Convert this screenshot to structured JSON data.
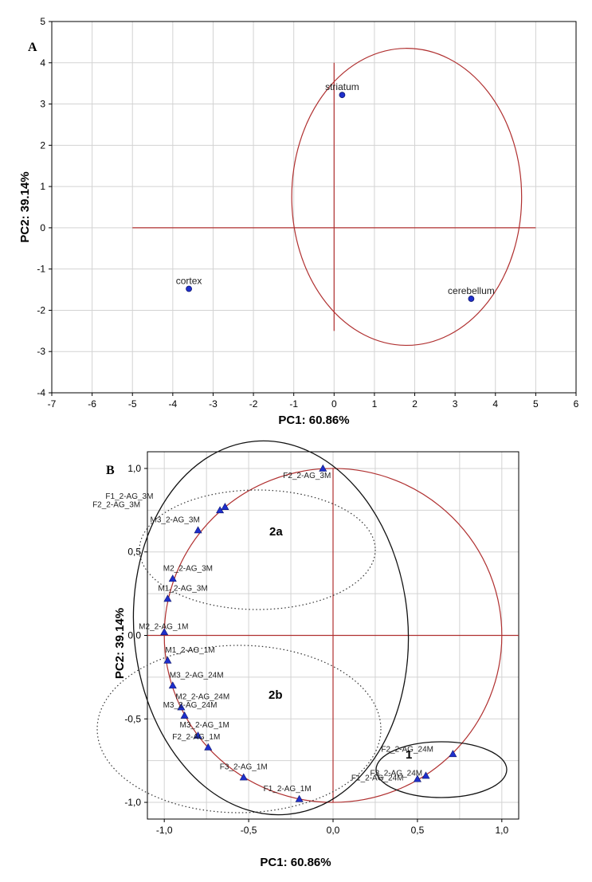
{
  "chart_data": [
    {
      "type": "scatter",
      "panel": "A",
      "xlabel": "PC1: 60.86%",
      "ylabel": "PC2: 39.14%",
      "xlim": [
        -7,
        6
      ],
      "ylim": [
        -4,
        5
      ],
      "xticks": [
        "-7",
        "-6",
        "-5",
        "-4",
        "-3",
        "-2",
        "-1",
        "0",
        "1",
        "2",
        "3",
        "4",
        "5",
        "6"
      ],
      "yticks": [
        "-4",
        "-3",
        "-2",
        "-1",
        "0",
        "1",
        "2",
        "3",
        "4",
        "5"
      ],
      "grid": true,
      "points": [
        {
          "label": "striatum",
          "x": 0.2,
          "y": 3.22
        },
        {
          "label": "cortex",
          "x": -3.6,
          "y": -1.48
        },
        {
          "label": "cerebellum",
          "x": 3.4,
          "y": -1.72
        }
      ],
      "marker_color": "#1f2fcc",
      "reference_color": "#b03030"
    },
    {
      "type": "scatter",
      "panel": "B",
      "xlabel": "PC1: 60.86%",
      "ylabel": "PC2: 39.14%",
      "xlim": [
        -1.1,
        1.1
      ],
      "ylim": [
        -1.1,
        1.1
      ],
      "xticks": [
        "-1,0",
        "-0,5",
        "0,0",
        "0,5",
        "1,0"
      ],
      "yticks": [
        "-1,0",
        "-0,5",
        "0,0",
        "0,5",
        "1,0"
      ],
      "grid": true,
      "points": [
        {
          "label": "F2_2-AG_3M",
          "x": -0.06,
          "y": 1.0
        },
        {
          "label": "F1_2-AG_3M",
          "x": -0.64,
          "y": 0.77
        },
        {
          "label": "F2_2-AG_3M",
          "x": -0.67,
          "y": 0.75
        },
        {
          "label": "M3_2-AG_3M",
          "x": -0.8,
          "y": 0.63
        },
        {
          "label": "M2_2-AG_3M",
          "x": -0.95,
          "y": 0.34
        },
        {
          "label": "M1_2-AG_3M",
          "x": -0.98,
          "y": 0.22
        },
        {
          "label": "M2_2-AG_1M",
          "x": -1.0,
          "y": 0.02
        },
        {
          "label": "M1_2-AG_1M",
          "x": -0.98,
          "y": -0.15
        },
        {
          "label": "M3_2-AG_24M",
          "x": -0.95,
          "y": -0.3
        },
        {
          "label": "M2_2-AG_24M",
          "x": -0.9,
          "y": -0.43
        },
        {
          "label": "M3_2-AG_24M",
          "x": -0.88,
          "y": -0.48
        },
        {
          "label": "M3_2-AG_1M",
          "x": -0.8,
          "y": -0.6
        },
        {
          "label": "F2_2-AG_1M",
          "x": -0.74,
          "y": -0.67
        },
        {
          "label": "F3_2-AG_1M",
          "x": -0.53,
          "y": -0.85
        },
        {
          "label": "F1_2-AG_1M",
          "x": -0.2,
          "y": -0.98
        },
        {
          "label": "F2_2-AG_24M",
          "x": 0.71,
          "y": -0.71
        },
        {
          "label": "F3_2-AG_24M",
          "x": 0.55,
          "y": -0.84
        },
        {
          "label": "F1_2-AG_24M",
          "x": 0.5,
          "y": -0.86
        }
      ],
      "groups": [
        "1",
        "2a",
        "2b"
      ],
      "marker_color": "#1f2fcc",
      "reference_color": "#b03030"
    }
  ]
}
